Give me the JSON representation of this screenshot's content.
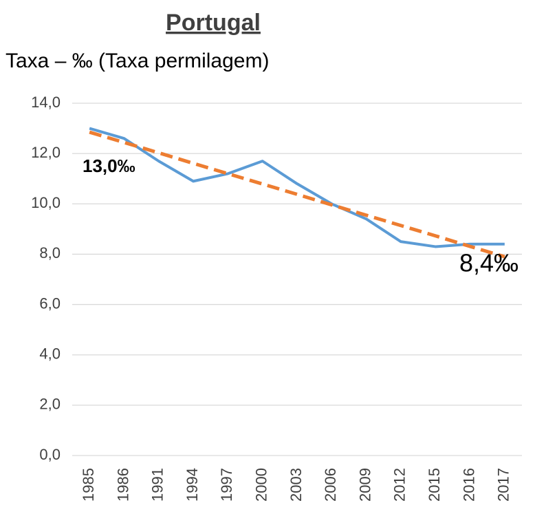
{
  "chart_data": {
    "type": "line",
    "title": "Portugal",
    "subtitle": "Taxa – ‰  (Taxa permilagem)",
    "categories": [
      "1985",
      "1986",
      "1991",
      "1994",
      "1997",
      "2000",
      "2003",
      "2006",
      "2009",
      "2012",
      "2015",
      "2016",
      "2017"
    ],
    "series": [
      {
        "color": "#5b9bd5",
        "dashed": false,
        "values": [
          13.0,
          12.6,
          11.7,
          10.9,
          11.2,
          11.7,
          10.8,
          10.0,
          9.4,
          8.5,
          8.3,
          8.4,
          8.4
        ]
      },
      {
        "color": "#ed7d31",
        "dashed": true,
        "values": [
          12.85,
          12.44,
          12.03,
          11.61,
          11.2,
          10.79,
          10.38,
          9.96,
          9.55,
          9.14,
          8.73,
          8.31,
          7.9
        ]
      }
    ],
    "annotations": [
      {
        "text": "13,0‰"
      },
      {
        "text": "8,4‰"
      }
    ],
    "ylim": [
      0,
      14
    ],
    "yticks": [
      {
        "value": 0,
        "label": "0,0"
      },
      {
        "value": 2,
        "label": "2,0"
      },
      {
        "value": 4,
        "label": "4,0"
      },
      {
        "value": 6,
        "label": "6,0"
      },
      {
        "value": 8,
        "label": "8,0"
      },
      {
        "value": 10,
        "label": "10,0"
      },
      {
        "value": 12,
        "label": "12,0"
      },
      {
        "value": 14,
        "label": "14,0"
      }
    ],
    "grid": true
  }
}
